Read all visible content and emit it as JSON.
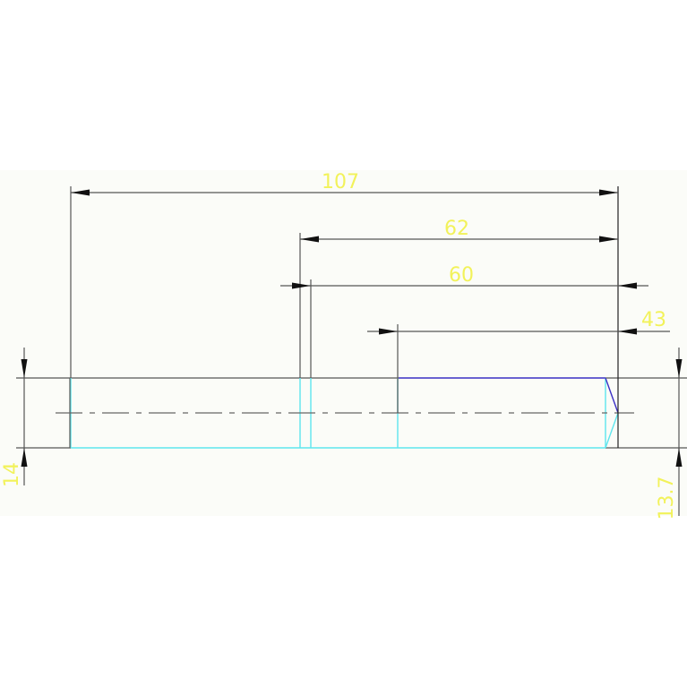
{
  "drawing": {
    "colors": {
      "background": "#fbfcf8",
      "dimension_text": "#f2f25a",
      "dimension_lines": "#555555",
      "part_outline_cyan": "#5ee6ee",
      "part_outline_blue": "#3b2fc4"
    },
    "dimensions": {
      "overall_length": "107",
      "length_62": "62",
      "length_60": "60",
      "length_43": "43",
      "left_diameter": "14",
      "right_diameter": "13.7"
    }
  }
}
